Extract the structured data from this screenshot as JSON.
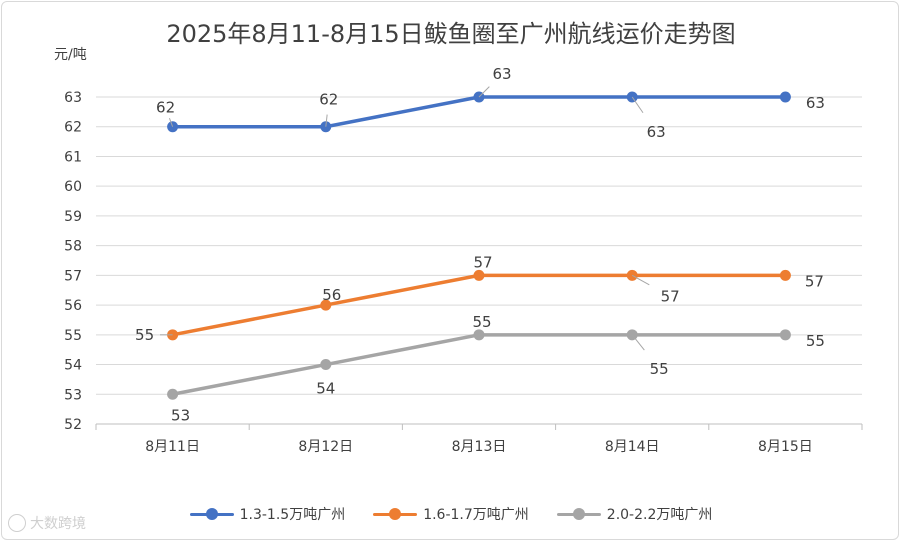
{
  "chart_data": {
    "type": "line",
    "title": "2025年8月11-8月15日鲅鱼圈至广州航线运价走势图",
    "ylabel": "元/吨",
    "categories": [
      "8月11日",
      "8月12日",
      "8月13日",
      "8月14日",
      "8月15日"
    ],
    "ylim": [
      52,
      63
    ],
    "yticks": [
      52,
      53,
      54,
      55,
      56,
      57,
      58,
      59,
      60,
      61,
      62,
      63
    ],
    "grid": true,
    "legend_position": "bottom",
    "series": [
      {
        "name": "1.3-1.5万吨广州",
        "color": "#4472c4",
        "values": [
          62,
          62,
          63,
          63,
          63
        ]
      },
      {
        "name": "1.6-1.7万吨广州",
        "color": "#ed7d31",
        "values": [
          55,
          56,
          57,
          57,
          57
        ]
      },
      {
        "name": "2.0-2.2万吨广州",
        "color": "#a5a5a5",
        "values": [
          53,
          54,
          55,
          55,
          55
        ]
      }
    ]
  },
  "watermark": {
    "text": "大数跨境"
  }
}
